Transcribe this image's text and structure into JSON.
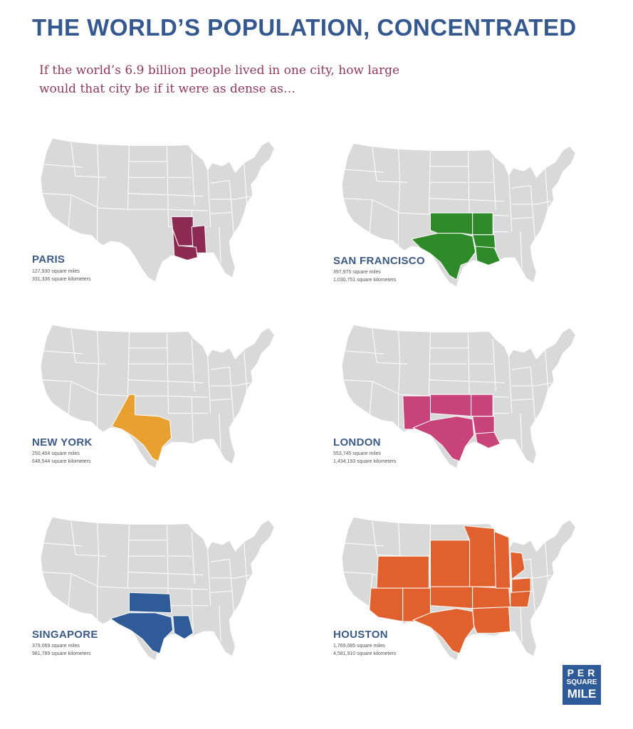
{
  "title": "THE WORLD’S POPULATION, CONCENTRATED",
  "subtitle": "If the world’s 6.9 billion people lived in one city, how large would that city be if it were as dense as…",
  "map": {
    "base_color": "#d9d9d9",
    "border_color": "#ffffff"
  },
  "panels": [
    {
      "city": "PARIS",
      "color": "#8c2a52",
      "highlight": "paris",
      "sq_miles": "127,930 square miles",
      "sq_km": "331,336 square kilometers"
    },
    {
      "city": "SAN FRANCISCO",
      "color": "#2f8a2a",
      "highlight": "sanfrancisco",
      "sq_miles": "397,975 square miles",
      "sq_km": "1,030,751 square kilometers"
    },
    {
      "city": "NEW YORK",
      "color": "#e8a030",
      "highlight": "newyork",
      "sq_miles": "250,404 square miles",
      "sq_km": "648,544 square kilometers"
    },
    {
      "city": "LONDON",
      "color": "#c8437a",
      "highlight": "london",
      "sq_miles": "553,745 square miles",
      "sq_km": "1,434,193 square kilometers"
    },
    {
      "city": "SINGAPORE",
      "color": "#2f5b98",
      "highlight": "singapore",
      "sq_miles": "379,069 square miles",
      "sq_km": "981,789 square kilometers"
    },
    {
      "city": "HOUSTON",
      "color": "#e0602e",
      "highlight": "houston",
      "sq_miles": "1,769,085 square miles",
      "sq_km": "4,581,910 square kilometers"
    }
  ],
  "logo": {
    "line1": "PER",
    "line2": "SQUARE",
    "line3": "MILE"
  }
}
